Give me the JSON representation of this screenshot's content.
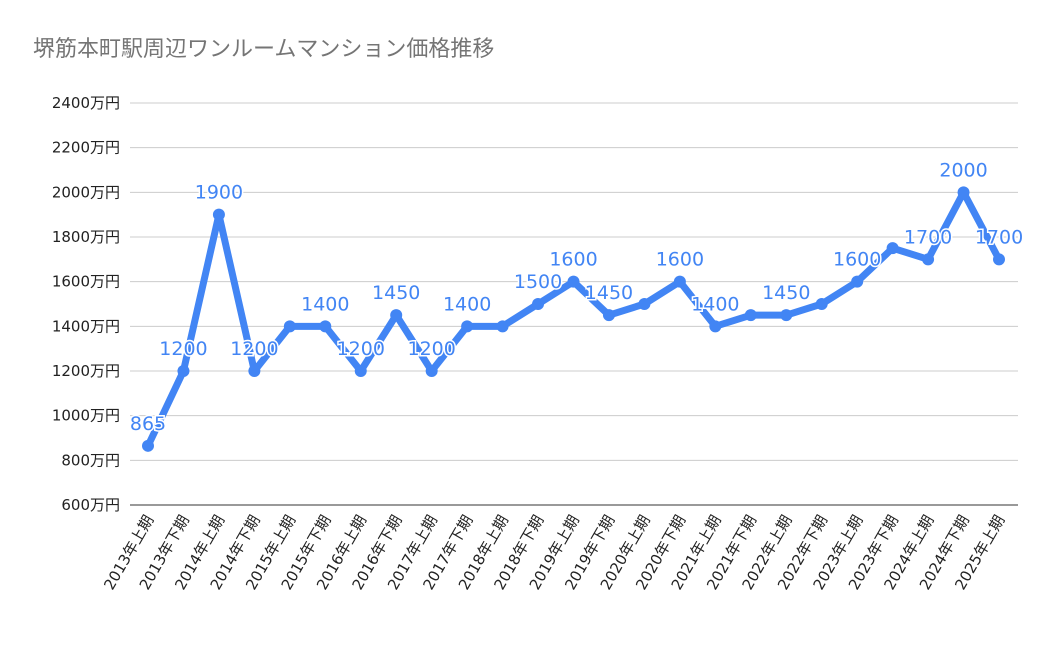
{
  "chart_data": {
    "type": "line",
    "title": "堺筋本町駅周辺ワンルームマンション価格推移",
    "xlabel": "",
    "ylabel": "",
    "ylim": [
      600,
      2400
    ],
    "yticks": [
      600,
      800,
      1000,
      1200,
      1400,
      1600,
      1800,
      2000,
      2200,
      2400
    ],
    "ytick_suffix": "万円",
    "grid": true,
    "color": "#4285f4",
    "categories": [
      "2013年上期",
      "2013年下期",
      "2014年上期",
      "2014年下期",
      "2015年上期",
      "2015年下期",
      "2016年上期",
      "2016年下期",
      "2017年上期",
      "2017年下期",
      "2018年上期",
      "2018年下期",
      "2019年上期",
      "2019年下期",
      "2020年上期",
      "2020年下期",
      "2021年上期",
      "2021年下期",
      "2022年上期",
      "2022年下期",
      "2023年上期",
      "2023年下期",
      "2024年上期",
      "2024年下期",
      "2025年上期"
    ],
    "values": [
      865,
      1200,
      1900,
      1200,
      1400,
      1400,
      1200,
      1450,
      1200,
      1400,
      1400,
      1500,
      1600,
      1450,
      1500,
      1600,
      1400,
      1450,
      1450,
      1500,
      1600,
      1750,
      1700,
      2000,
      1700
    ],
    "data_labels": [
      "865",
      "1200",
      "1900",
      "1200",
      "",
      "1400",
      "1200",
      "1450",
      "1200",
      "1400",
      "",
      "1500",
      "1600",
      "1450",
      "",
      "1600",
      "1400",
      "",
      "1450",
      "",
      "1600",
      "",
      "1700",
      "2000",
      "1700"
    ]
  }
}
